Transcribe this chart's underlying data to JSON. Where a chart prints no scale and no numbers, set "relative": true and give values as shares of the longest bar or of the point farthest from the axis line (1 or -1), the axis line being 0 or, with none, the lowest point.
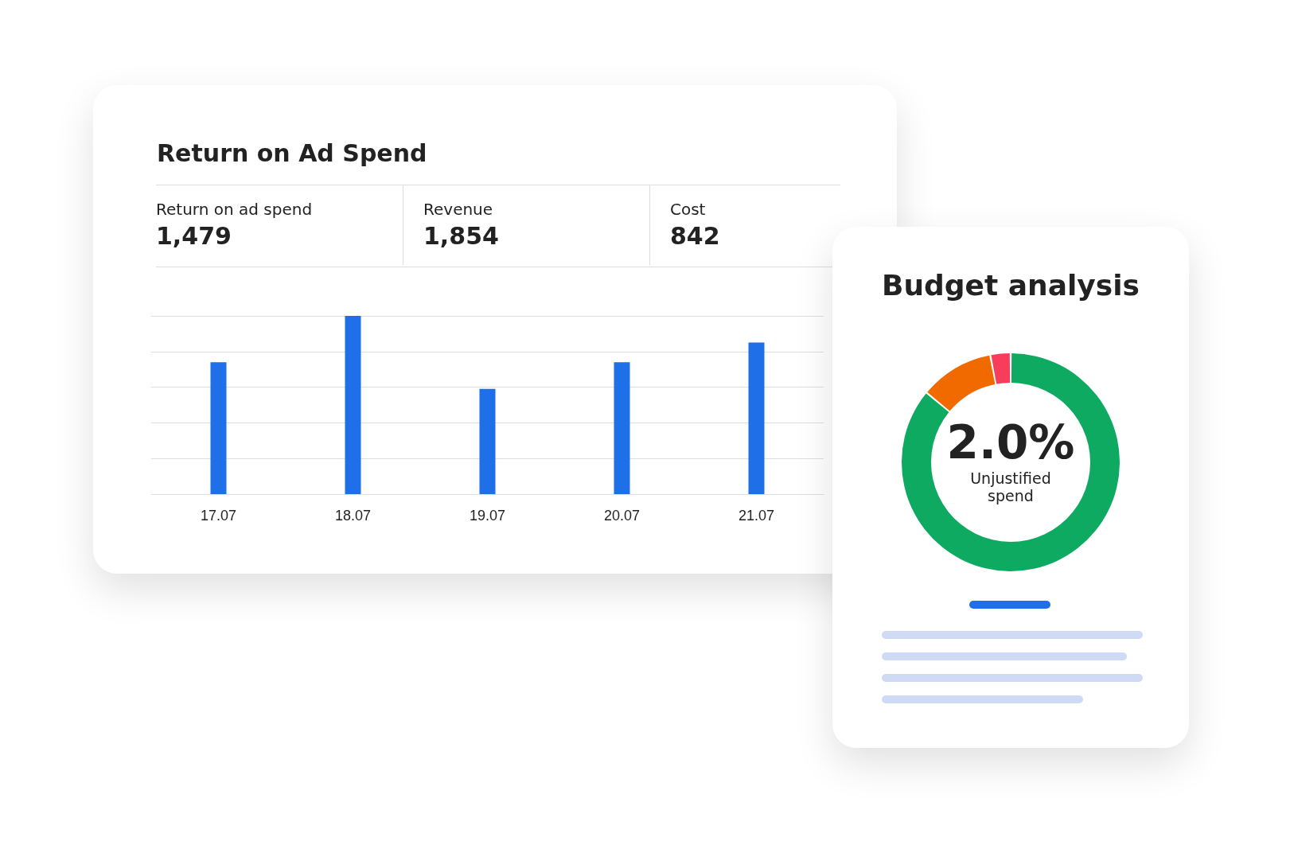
{
  "chart_data": [
    {
      "type": "bar",
      "title": "Return on Ad Spend",
      "categories": [
        "17.07",
        "18.07",
        "19.07",
        "20.07",
        "21.07"
      ],
      "values": [
        0.74,
        1,
        0.59,
        0.74,
        0.85
      ],
      "color": "#1f6fe8",
      "relative": true,
      "grid": "y",
      "annotations": [
        "Return on ad spend",
        "1,479",
        "Revenue",
        "1,854",
        "Cost",
        "842"
      ]
    },
    {
      "type": "donut",
      "title": "Budget analysis",
      "categories": [
        null,
        null,
        null
      ],
      "values": [
        86,
        11,
        3
      ],
      "colors": [
        "#0eaa61",
        "#f06a00",
        "#f83d5c"
      ],
      "annotations": [
        "2.0%",
        "Unjustified spend"
      ]
    }
  ]
}
